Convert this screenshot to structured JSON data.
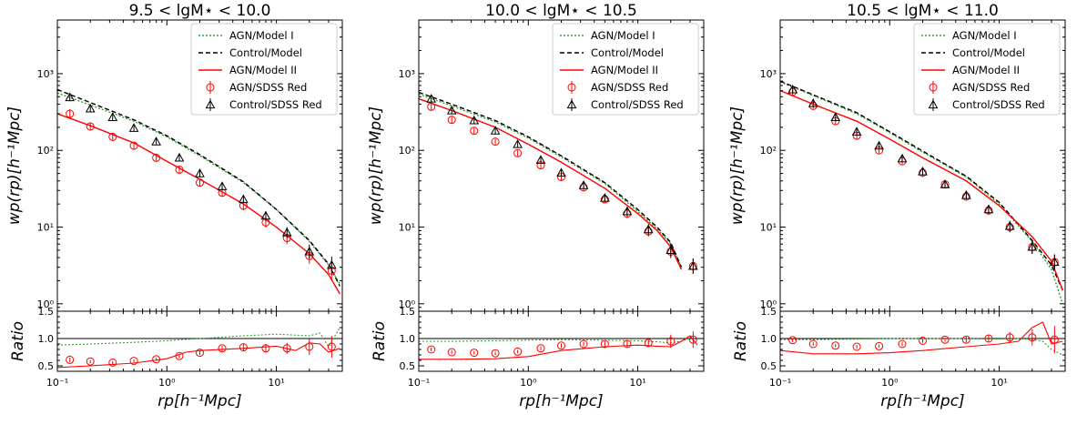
{
  "figure": {
    "series_styles": {
      "model1": {
        "color": "#2ca02c",
        "dash": "2,2"
      },
      "control": {
        "color": "#000000",
        "dash": "5,3"
      },
      "model2": {
        "color": "#ff0000",
        "dash": ""
      },
      "agn_obs": {
        "color": "#ff0000",
        "marker": "circle"
      },
      "ctrl_obs": {
        "color": "#000000",
        "marker": "triangle"
      }
    }
  },
  "chart_data": [
    {
      "type": "line",
      "title": "9.5 < lgM⋆ < 10.0",
      "xlabel": "rp[h⁻¹Mpc]",
      "ylabel": "wp(rp)[h⁻¹Mpc]",
      "ratio_ylabel": "Ratio",
      "xscale": "log",
      "yscale": "log",
      "xlim": [
        0.1,
        40
      ],
      "ylim": [
        0.8,
        5000
      ],
      "ratio_ylim": [
        0.4,
        1.5
      ],
      "x_ticks": [
        "10⁻¹",
        "10⁰",
        "10¹"
      ],
      "y_ticks": [
        "10⁰",
        "10¹",
        "10²",
        "10³"
      ],
      "ratio_ticks": [
        "0.5",
        "1.0",
        "1.5"
      ],
      "legend": [
        "AGN/Model I",
        "Control/Model",
        "AGN/Model II",
        "AGN/SDSS Red",
        "Control/SDSS Red"
      ],
      "legend_position": "top-right",
      "series": [
        {
          "name": "AGN/Model I",
          "style": "model1",
          "x": [
            0.1,
            0.2,
            0.5,
            1,
            2,
            5,
            10,
            20,
            30,
            38
          ],
          "y": [
            560,
            390,
            240,
            150,
            85,
            38,
            17,
            6.5,
            3.2,
            1.8
          ]
        },
        {
          "name": "Control/Model",
          "style": "control",
          "x": [
            0.1,
            0.2,
            0.5,
            1,
            2,
            5,
            10,
            20,
            30,
            38
          ],
          "y": [
            620,
            420,
            250,
            155,
            88,
            39,
            17,
            6.7,
            3.3,
            1.7
          ]
        },
        {
          "name": "AGN/Model II",
          "style": "model2",
          "x": [
            0.1,
            0.2,
            0.5,
            1,
            2,
            5,
            10,
            20,
            30,
            38
          ],
          "y": [
            300,
            210,
            125,
            72,
            42,
            20,
            10,
            4.5,
            2.4,
            1.35
          ]
        },
        {
          "name": "AGN/SDSS Red",
          "style": "agn_obs",
          "x": [
            0.13,
            0.2,
            0.32,
            0.5,
            0.8,
            1.3,
            2.0,
            3.2,
            5.0,
            8.0,
            12.5,
            20,
            32
          ],
          "y": [
            300,
            205,
            150,
            115,
            80,
            56,
            38,
            28,
            19,
            11.5,
            7.2,
            4.2,
            2.7
          ],
          "err": [
            0.06,
            0.05,
            0.05,
            0.05,
            0.05,
            0.05,
            0.05,
            0.05,
            0.06,
            0.07,
            0.08,
            0.1,
            0.12
          ]
        },
        {
          "name": "Control/SDSS Red",
          "style": "ctrl_obs",
          "x": [
            0.13,
            0.2,
            0.32,
            0.5,
            0.8,
            1.3,
            2.0,
            3.2,
            5.0,
            8.0,
            12.5,
            20,
            32
          ],
          "y": [
            490,
            350,
            270,
            195,
            130,
            80,
            50,
            34,
            23,
            14,
            8.5,
            4.8,
            3.2
          ],
          "err": [
            0.05,
            0.04,
            0.04,
            0.04,
            0.04,
            0.04,
            0.05,
            0.05,
            0.05,
            0.06,
            0.07,
            0.09,
            0.11
          ]
        }
      ],
      "ratio": {
        "model1": {
          "x": [
            0.1,
            0.2,
            0.5,
            1,
            2,
            5,
            10,
            20,
            25,
            30,
            38
          ],
          "y": [
            0.88,
            0.9,
            0.93,
            0.96,
            1.0,
            1.05,
            1.08,
            1.05,
            1.1,
            0.85,
            1.2
          ]
        },
        "model2": {
          "x": [
            0.1,
            0.2,
            0.5,
            1,
            1.5,
            2,
            5,
            10,
            15,
            20,
            25,
            30,
            38
          ],
          "y": [
            0.47,
            0.5,
            0.55,
            0.63,
            0.75,
            0.78,
            0.82,
            0.86,
            0.78,
            0.92,
            0.9,
            0.75,
            0.82
          ]
        },
        "points": {
          "x": [
            0.13,
            0.2,
            0.32,
            0.5,
            0.8,
            1.3,
            2.0,
            3.2,
            5.0,
            8.0,
            12.5,
            20,
            32
          ],
          "y": [
            0.61,
            0.58,
            0.56,
            0.59,
            0.62,
            0.68,
            0.74,
            0.82,
            0.84,
            0.82,
            0.82,
            0.85,
            0.85
          ],
          "err": [
            0.04,
            0.03,
            0.03,
            0.03,
            0.03,
            0.04,
            0.04,
            0.05,
            0.06,
            0.08,
            0.1,
            0.15,
            0.2
          ]
        }
      }
    },
    {
      "type": "line",
      "title": "10.0 < lgM⋆ < 10.5",
      "xlabel": "rp[h⁻¹Mpc]",
      "ylabel": "wp(rp)[h⁻¹Mpc]",
      "ratio_ylabel": "Ratio",
      "xscale": "log",
      "yscale": "log",
      "xlim": [
        0.1,
        40
      ],
      "ylim": [
        0.8,
        5000
      ],
      "ratio_ylim": [
        0.4,
        1.5
      ],
      "x_ticks": [
        "10⁻¹",
        "10⁰",
        "10¹"
      ],
      "y_ticks": [
        "10⁰",
        "10¹",
        "10²",
        "10³"
      ],
      "ratio_ticks": [
        "0.5",
        "1.0",
        "1.5"
      ],
      "legend": [
        "AGN/Model I",
        "Control/Model",
        "AGN/Model II",
        "AGN/SDSS Red",
        "Control/SDSS Red"
      ],
      "legend_position": "top-right",
      "series": [
        {
          "name": "AGN/Model I",
          "style": "model1",
          "x": [
            0.1,
            0.2,
            0.5,
            1,
            2,
            5,
            10,
            15,
            20,
            25
          ],
          "y": [
            540,
            380,
            235,
            145,
            82,
            37,
            16,
            9.5,
            6,
            3
          ]
        },
        {
          "name": "Control/Model",
          "style": "control",
          "x": [
            0.1,
            0.2,
            0.5,
            1,
            2,
            5,
            10,
            15,
            20,
            25
          ],
          "y": [
            570,
            400,
            245,
            150,
            85,
            38,
            17,
            10,
            6.3,
            3
          ]
        },
        {
          "name": "AGN/Model II",
          "style": "model2",
          "x": [
            0.1,
            0.2,
            0.5,
            1,
            2,
            5,
            10,
            15,
            20,
            25
          ],
          "y": [
            470,
            330,
            200,
            120,
            70,
            32,
            15,
            9,
            5.5,
            2.8
          ]
        },
        {
          "name": "AGN/SDSS Red",
          "style": "agn_obs",
          "x": [
            0.13,
            0.2,
            0.32,
            0.5,
            0.8,
            1.3,
            2.0,
            3.2,
            5.0,
            8.0,
            12.5,
            20,
            32
          ],
          "y": [
            370,
            250,
            180,
            130,
            92,
            64,
            45,
            33,
            23,
            15,
            8.8,
            4.8,
            3.1
          ],
          "err": [
            0.05,
            0.04,
            0.04,
            0.04,
            0.04,
            0.04,
            0.05,
            0.05,
            0.05,
            0.06,
            0.07,
            0.09,
            0.1
          ]
        },
        {
          "name": "Control/SDSS Red",
          "style": "ctrl_obs",
          "x": [
            0.13,
            0.2,
            0.32,
            0.5,
            0.8,
            1.3,
            2.0,
            3.2,
            5.0,
            8.0,
            12.5,
            20,
            32
          ],
          "y": [
            470,
            330,
            245,
            180,
            120,
            75,
            51,
            35,
            24,
            16,
            9.3,
            5,
            3.1
          ],
          "err": [
            0.05,
            0.04,
            0.04,
            0.04,
            0.04,
            0.04,
            0.05,
            0.05,
            0.05,
            0.06,
            0.07,
            0.09,
            0.1
          ]
        }
      ],
      "ratio": {
        "model1": {
          "x": [
            0.1,
            0.2,
            0.5,
            1,
            2,
            5,
            10,
            15,
            20,
            25,
            30
          ],
          "y": [
            0.95,
            0.95,
            0.96,
            0.97,
            0.98,
            0.97,
            0.96,
            0.94,
            0.92,
            0.95,
            1.0
          ]
        },
        "model2": {
          "x": [
            0.1,
            0.2,
            0.5,
            1,
            2,
            5,
            10,
            15,
            20,
            25,
            30,
            35
          ],
          "y": [
            0.62,
            0.62,
            0.63,
            0.67,
            0.78,
            0.85,
            0.88,
            0.86,
            0.85,
            0.95,
            1.05,
            0.88
          ]
        },
        "points": {
          "x": [
            0.13,
            0.2,
            0.32,
            0.5,
            0.8,
            1.3,
            2.0,
            3.2,
            5.0,
            8.0,
            12.5,
            20,
            32
          ],
          "y": [
            0.8,
            0.75,
            0.74,
            0.73,
            0.76,
            0.82,
            0.87,
            0.9,
            0.9,
            0.9,
            0.92,
            0.95,
            0.98
          ],
          "err": [
            0.04,
            0.03,
            0.03,
            0.03,
            0.03,
            0.04,
            0.04,
            0.04,
            0.05,
            0.06,
            0.08,
            0.12,
            0.15
          ]
        }
      }
    },
    {
      "type": "line",
      "title": "10.5 < lgM⋆ < 11.0",
      "xlabel": "rp[h⁻¹Mpc]",
      "ylabel": "wp(rp)[h⁻¹Mpc]",
      "ratio_ylabel": "Ratio",
      "xscale": "log",
      "yscale": "log",
      "xlim": [
        0.1,
        40
      ],
      "ylim": [
        0.8,
        5000
      ],
      "ratio_ylim": [
        0.4,
        1.5
      ],
      "x_ticks": [
        "10⁻¹",
        "10⁰",
        "10¹"
      ],
      "y_ticks": [
        "10⁰",
        "10¹",
        "10²",
        "10³"
      ],
      "ratio_ticks": [
        "0.5",
        "1.0",
        "1.5"
      ],
      "legend": [
        "AGN/Model I",
        "Control/Model",
        "AGN/Model II",
        "AGN/SDSS Red",
        "Control/SDSS Red"
      ],
      "legend_position": "top-right",
      "series": [
        {
          "name": "AGN/Model I",
          "style": "model1",
          "x": [
            0.1,
            0.2,
            0.5,
            1,
            2,
            5,
            10,
            20,
            30,
            38
          ],
          "y": [
            780,
            520,
            300,
            170,
            95,
            45,
            20,
            6.5,
            2.8,
            1
          ]
        },
        {
          "name": "Control/Model",
          "style": "control",
          "x": [
            0.1,
            0.2,
            0.5,
            1,
            2,
            5,
            10,
            20,
            30,
            38
          ],
          "y": [
            800,
            530,
            310,
            175,
            98,
            46,
            21,
            6.7,
            3.2,
            1.5
          ]
        },
        {
          "name": "AGN/Model II",
          "style": "model2",
          "x": [
            0.1,
            0.2,
            0.5,
            1,
            2,
            5,
            10,
            20,
            30,
            38
          ],
          "y": [
            600,
            400,
            240,
            140,
            80,
            40,
            19,
            7.5,
            3.6,
            1.5
          ]
        },
        {
          "name": "AGN/SDSS Red",
          "style": "agn_obs",
          "x": [
            0.13,
            0.2,
            0.32,
            0.5,
            0.8,
            1.3,
            2.0,
            3.2,
            5.0,
            8.0,
            12.5,
            20,
            32
          ],
          "y": [
            580,
            380,
            240,
            155,
            100,
            72,
            51,
            36,
            25,
            16.5,
            10,
            5.5,
            3.5
          ],
          "err": [
            0.05,
            0.04,
            0.04,
            0.04,
            0.04,
            0.04,
            0.05,
            0.05,
            0.05,
            0.06,
            0.07,
            0.09,
            0.1
          ]
        },
        {
          "name": "Control/SDSS Red",
          "style": "ctrl_obs",
          "x": [
            0.13,
            0.2,
            0.32,
            0.5,
            0.8,
            1.3,
            2.0,
            3.2,
            5.0,
            8.0,
            12.5,
            20,
            32
          ],
          "y": [
            620,
            410,
            270,
            175,
            115,
            78,
            53,
            36,
            26,
            17,
            10.3,
            5.5,
            3.5
          ],
          "err": [
            0.05,
            0.04,
            0.04,
            0.04,
            0.04,
            0.04,
            0.05,
            0.05,
            0.05,
            0.06,
            0.07,
            0.09,
            0.1
          ]
        }
      ],
      "ratio": {
        "model1": {
          "x": [
            0.1,
            0.2,
            0.5,
            1,
            2,
            5,
            10,
            15,
            20,
            25,
            30,
            38
          ],
          "y": [
            0.98,
            0.98,
            0.99,
            1.0,
            1.0,
            1.0,
            0.99,
            1.0,
            0.98,
            0.95,
            0.8,
            0.7
          ]
        },
        "model2": {
          "x": [
            0.1,
            0.2,
            0.5,
            1,
            2,
            5,
            10,
            15,
            20,
            25,
            30,
            38
          ],
          "y": [
            0.78,
            0.72,
            0.72,
            0.74,
            0.78,
            0.85,
            0.9,
            0.95,
            1.2,
            1.3,
            0.9,
            0.95
          ]
        },
        "points": {
          "x": [
            0.13,
            0.2,
            0.32,
            0.5,
            0.8,
            1.3,
            2.0,
            3.2,
            5.0,
            8.0,
            12.5,
            20,
            32
          ],
          "y": [
            0.97,
            0.9,
            0.87,
            0.85,
            0.86,
            0.9,
            0.96,
            0.98,
            0.98,
            1.0,
            1.02,
            1.02,
            0.98
          ],
          "err": [
            0.04,
            0.03,
            0.03,
            0.03,
            0.03,
            0.04,
            0.04,
            0.04,
            0.05,
            0.07,
            0.1,
            0.15,
            0.25
          ]
        }
      }
    }
  ]
}
